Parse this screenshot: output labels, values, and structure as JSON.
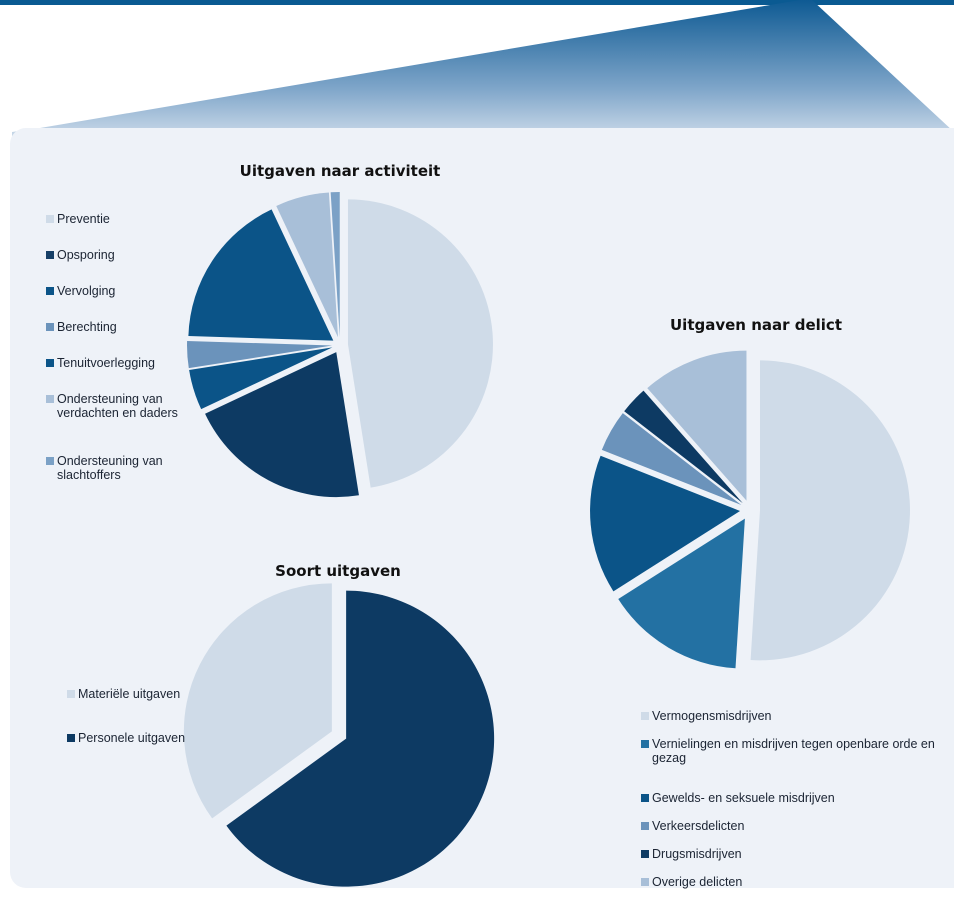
{
  "colors": {
    "panel": "#eef2f8",
    "preventie": "#cfdbe8",
    "opsporing": "#163f67",
    "vervolging": "#0b5488",
    "berechting": "#6b93bb",
    "tenuitvoerlegging": "#0b5488",
    "ondersteuning_verdachten": "#a8bfd8",
    "ondersteuning_slachtoffers": "#7ba1c6"
  },
  "chart_data": [
    {
      "id": "activiteit",
      "type": "pie",
      "title": "Uitgaven naar activiteit",
      "legend_position": "left",
      "categories": [
        "Preventie",
        "Opsporing",
        "Vervolging",
        "Berechting",
        "Tenuitvoerlegging",
        "Ondersteuning van verdachten en daders",
        "Ondersteuning van slachtoffers"
      ],
      "legend": [
        {
          "label": "Preventie",
          "color": "#cfdbe8"
        },
        {
          "label": "Opsporing",
          "color": "#163f67"
        },
        {
          "label": "Vervolging",
          "color": "#0b5488"
        },
        {
          "label": "Berechting",
          "color": "#6b93bb"
        },
        {
          "label": "Tenuitvoerlegging",
          "color": "#0b5488"
        },
        {
          "label": "Ondersteuning van verdachten en daders",
          "color": "#a8bfd8"
        },
        {
          "label": "Ondersteuning van slachtoffers",
          "color": "#7ba1c6"
        }
      ],
      "slices": [
        {
          "label": "Preventie",
          "value": 47.5,
          "color": "#cfdbe8"
        },
        {
          "label": "Opsporing",
          "value": 20.5,
          "color": "#0d3a63"
        },
        {
          "label": "Tenuitvoerlegging",
          "value": 4.5,
          "color": "#0b5488"
        },
        {
          "label": "Berechting",
          "value": 3.0,
          "color": "#6b93bb"
        },
        {
          "label": "Vervolging",
          "value": 17.5,
          "color": "#0b5488"
        },
        {
          "label": "Ondersteuning van verdachten en daders",
          "value": 6.0,
          "color": "#a8bfd8"
        },
        {
          "label": "Ondersteuning van slachtoffers",
          "value": 1.0,
          "color": "#7ba1c6"
        }
      ]
    },
    {
      "id": "delict",
      "type": "pie",
      "title": "Uitgaven naar delict",
      "legend_position": "bottom",
      "categories": [
        "Vermogensmisdrijven",
        "Vernielingen en misdrijven tegen openbare orde en gezag",
        "Gewelds- en seksuele misdrijven",
        "Verkeersdelicten",
        "Drugsmisdrijven",
        "Overige delicten"
      ],
      "legend": [
        {
          "label": "Vermogensmisdrijven",
          "color": "#cfdbe8"
        },
        {
          "label": "Vernielingen en misdrijven tegen openbare orde en gezag",
          "color": "#2371a3"
        },
        {
          "label": "Gewelds- en seksuele misdrijven",
          "color": "#0b5488"
        },
        {
          "label": "Verkeersdelicten",
          "color": "#6b93bb"
        },
        {
          "label": "Drugsmisdrijven",
          "color": "#0d3a63"
        },
        {
          "label": "Overige delicten",
          "color": "#a8bfd8"
        }
      ],
      "slices": [
        {
          "label": "Vermogensmisdrijven",
          "value": 51.0,
          "color": "#cfdbe8"
        },
        {
          "label": "Vernielingen en misdrijven tegen openbare orde en gezag",
          "value": 15.0,
          "color": "#2371a3"
        },
        {
          "label": "Gewelds- en seksuele misdrijven",
          "value": 15.0,
          "color": "#0b5488"
        },
        {
          "label": "Verkeersdelicten",
          "value": 4.5,
          "color": "#6b93bb"
        },
        {
          "label": "Drugsmisdrijven",
          "value": 3.0,
          "color": "#0d3a63"
        },
        {
          "label": "Overige delicten",
          "value": 11.5,
          "color": "#a8bfd8"
        }
      ]
    },
    {
      "id": "soort",
      "type": "pie",
      "title": "Soort uitgaven",
      "legend_position": "left",
      "categories": [
        "Materiële uitgaven",
        "Personele uitgaven"
      ],
      "legend": [
        {
          "label": "Materiële uitgaven",
          "color": "#cfdbe8"
        },
        {
          "label": "Personele uitgaven",
          "color": "#0d3a63"
        }
      ],
      "slices": [
        {
          "label": "Personele uitgaven",
          "value": 65.0,
          "color": "#0d3a63"
        },
        {
          "label": "Materiële uitgaven",
          "value": 35.0,
          "color": "#cfdbe8"
        }
      ]
    }
  ]
}
